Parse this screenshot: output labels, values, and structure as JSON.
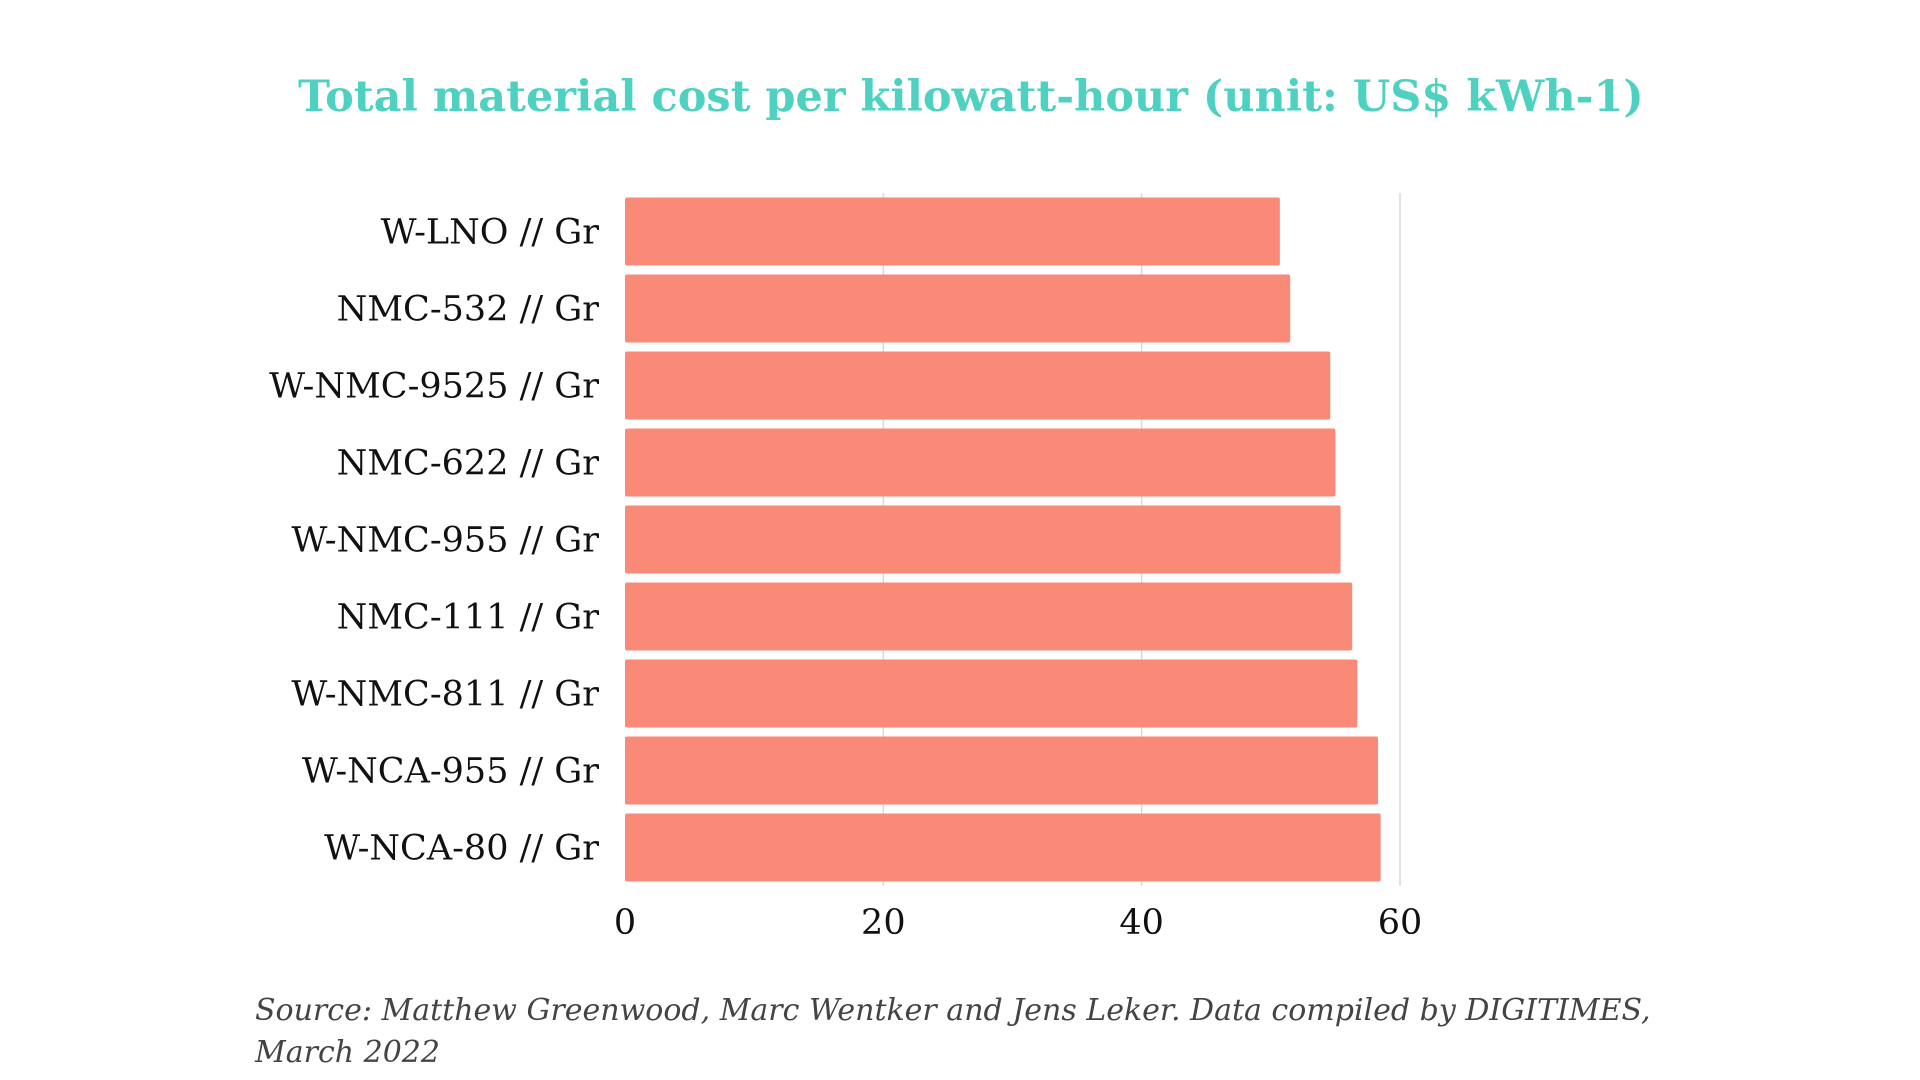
{
  "chart_data": {
    "type": "bar",
    "orientation": "horizontal",
    "title": "Total material cost per kilowatt-hour (unit: US$ kWh-1)",
    "xlabel": "",
    "ylabel": "",
    "categories": [
      "W-LNO // Gr",
      "NMC-532 // Gr",
      "W-NMC-9525 // Gr",
      "NMC-622 // Gr",
      "W-NMC-955 // Gr",
      "NMC-111 // Gr",
      "W-NMC-811 // Gr",
      "W-NCA-955 // Gr",
      "W-NCA-80 // Gr"
    ],
    "values": [
      50.7,
      51.5,
      54.6,
      55.0,
      55.4,
      56.3,
      56.7,
      58.3,
      58.5
    ],
    "xlim": [
      0,
      60
    ],
    "xticks": [
      "0",
      "20",
      "40",
      "60"
    ],
    "grid": true,
    "bar_color": "#fa8a78",
    "grid_color": "#d9d9d9",
    "title_color": "#4fd1c1"
  },
  "source_note": "Source: Matthew Greenwood, Marc Wentker and Jens Leker. Data compiled by DIGITIMES, March 2022"
}
